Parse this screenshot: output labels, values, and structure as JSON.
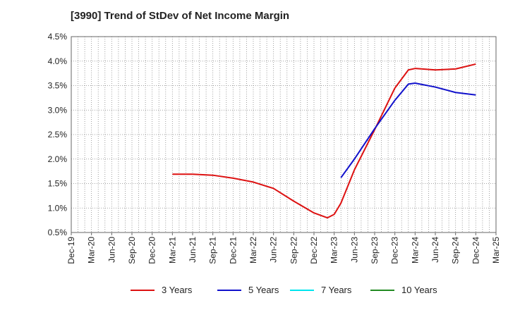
{
  "title": "[3990]  Trend of StDev of Net Income Margin",
  "chart_data": {
    "type": "line",
    "title": "[3990]  Trend of StDev of Net Income Margin",
    "xlabel": "",
    "ylabel": "",
    "x": [
      "Dec-19",
      "Mar-20",
      "Jun-20",
      "Sep-20",
      "Dec-20",
      "Mar-21",
      "Jun-21",
      "Sep-21",
      "Dec-21",
      "Mar-22",
      "Jun-22",
      "Sep-22",
      "Dec-22",
      "Mar-23",
      "Jun-23",
      "Sep-23",
      "Dec-23",
      "Mar-24",
      "Jun-24",
      "Sep-24",
      "Dec-24",
      "Mar-25"
    ],
    "x_tick_labels": [
      "Dec-19",
      "Mar-20",
      "Jun-20",
      "Sep-20",
      "Dec-20",
      "Mar-21",
      "Jun-21",
      "Sep-21",
      "Dec-21",
      "Mar-22",
      "Jun-22",
      "Sep-22",
      "Dec-22",
      "Mar-23",
      "Jun-23",
      "Sep-23",
      "Dec-23",
      "Mar-24",
      "Jun-24",
      "Sep-24",
      "Dec-24",
      "Mar-25"
    ],
    "y_ticks": [
      0.5,
      1.0,
      1.5,
      2.0,
      2.5,
      3.0,
      3.5,
      4.0,
      4.5
    ],
    "y_tick_labels": [
      "0.5%",
      "1.0%",
      "1.5%",
      "2.0%",
      "2.5%",
      "3.0%",
      "3.5%",
      "4.0%",
      "4.5%"
    ],
    "ylim": [
      0.5,
      4.5
    ],
    "grid": true,
    "legend_position": "bottom",
    "series": [
      {
        "name": "3 Years",
        "color": "#dd1111",
        "points": [
          [
            "Mar-21",
            1.69
          ],
          [
            "Jun-21",
            1.69
          ],
          [
            "Sep-21",
            1.67
          ],
          [
            "Dec-21",
            1.61
          ],
          [
            "Mar-22",
            1.53
          ],
          [
            "Jun-22",
            1.4
          ],
          [
            "Sep-22",
            1.14
          ],
          [
            "Dec-22",
            0.9
          ],
          [
            "Feb-23",
            0.8
          ],
          [
            "Mar-23",
            0.87
          ],
          [
            "Apr-23",
            1.1
          ],
          [
            "Jun-23",
            1.78
          ],
          [
            "Sep-23",
            2.6
          ],
          [
            "Dec-23",
            3.45
          ],
          [
            "Feb-24",
            3.82
          ],
          [
            "Mar-24",
            3.85
          ],
          [
            "Jun-24",
            3.82
          ],
          [
            "Sep-24",
            3.84
          ],
          [
            "Dec-24",
            3.94
          ]
        ]
      },
      {
        "name": "5 Years",
        "color": "#1111cc",
        "points": [
          [
            "Apr-23",
            1.62
          ],
          [
            "Jun-23",
            2.0
          ],
          [
            "Sep-23",
            2.62
          ],
          [
            "Dec-23",
            3.2
          ],
          [
            "Feb-24",
            3.53
          ],
          [
            "Mar-24",
            3.55
          ],
          [
            "Jun-24",
            3.47
          ],
          [
            "Sep-24",
            3.36
          ],
          [
            "Dec-24",
            3.31
          ]
        ]
      },
      {
        "name": "7 Years",
        "color": "#00e5ee",
        "points": []
      },
      {
        "name": "10 Years",
        "color": "#228b22",
        "points": []
      }
    ]
  }
}
